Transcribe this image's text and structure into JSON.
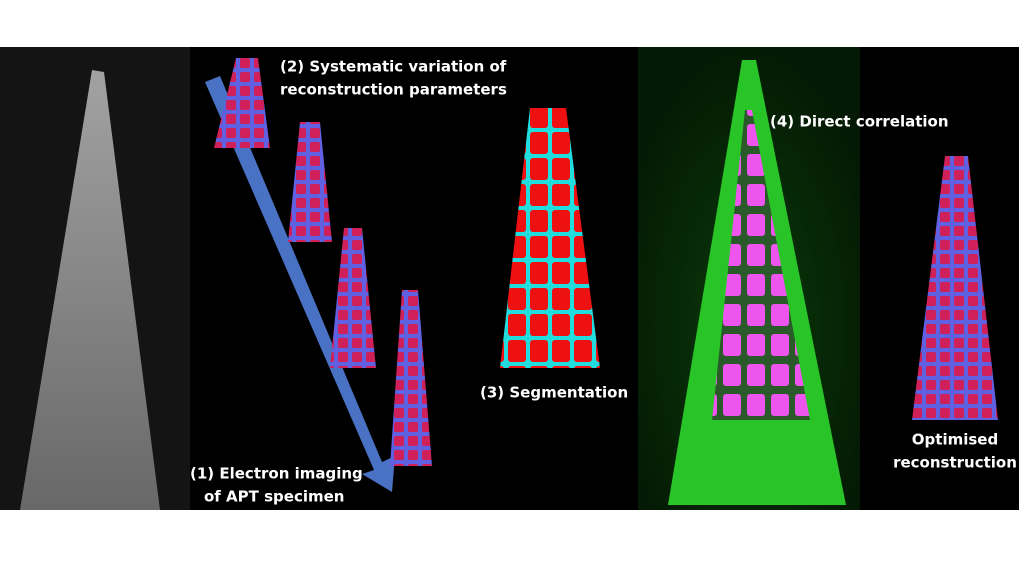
{
  "labels": {
    "step1": [
      "(1) Electron imaging",
      "of APT specimen"
    ],
    "step2": [
      "(2) Systematic variation of",
      "reconstruction parameters"
    ],
    "step3": [
      "(3) Segmentation"
    ],
    "step4": [
      "(4) Direct correlation"
    ],
    "result": [
      "Optimised",
      "reconstruction"
    ]
  }
}
